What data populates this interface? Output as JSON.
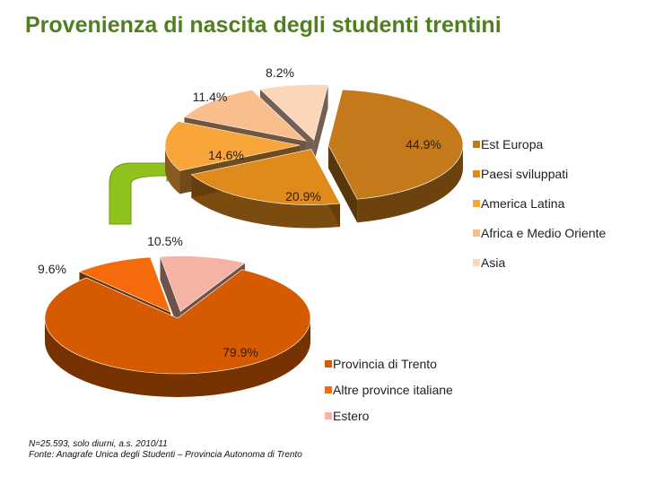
{
  "title": "Provenienza di nascita degli studenti trentini",
  "chart_data": [
    {
      "type": "pie",
      "slices": [
        {
          "label": "Provincia di Trento",
          "value": 79.9,
          "display": "79.9%",
          "color": "#d65a00"
        },
        {
          "label": "Altre province italiane",
          "value": 9.6,
          "display": "9.6%",
          "color": "#f56a0a"
        },
        {
          "label": "Estero",
          "value": 10.5,
          "display": "10.5%",
          "color": "#f4b3a3"
        }
      ],
      "legend": "right-bottom"
    },
    {
      "type": "pie",
      "slices": [
        {
          "label": "Est Europa",
          "value": 44.9,
          "display": "44.9%",
          "color": "#c47a1a"
        },
        {
          "label": "Paesi sviluppati",
          "value": 20.9,
          "display": "20.9%",
          "color": "#e08a1c"
        },
        {
          "label": "America Latina",
          "value": 14.6,
          "display": "14.6%",
          "color": "#f8a53a"
        },
        {
          "label": "Africa e Medio Oriente",
          "value": 11.4,
          "display": "11.4%",
          "color": "#f8be8c"
        },
        {
          "label": "Asia",
          "value": 8.2,
          "display": "8.2%",
          "color": "#fcd6b8"
        }
      ],
      "legend": "right"
    }
  ],
  "footnote": {
    "line1": "N=25.593, solo diurni, a.s. 2010/11",
    "line2": "Fonte: Anagrafe Unica degli Studenti – Provincia Autonoma di Trento"
  },
  "arrow_color": "#8fc21c"
}
